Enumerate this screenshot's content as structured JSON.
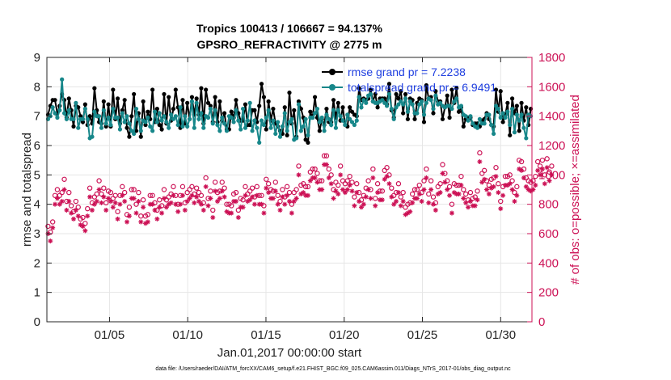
{
  "chart_data": {
    "type": "line",
    "title": "Tropics 100413 / 106667 = 94.137%",
    "subtitle": "GPSRO_REFRACTIVITY @ 2775 m",
    "xlabel": "Jan.01,2017 00:00:00 start",
    "ylabel_left": "rmse and totalspread",
    "ylabel_right": "# of obs: o=possible; ×=assimilated",
    "footer": "data file: /Users/raeder/DAI/ATM_forcXX/CAM6_setup/f.e21.FHIST_BGC.f09_025.CAM6assim.011/Diags_NTrS_2017-01/obs_diag_output.nc",
    "xlim": [
      1,
      32
    ],
    "ylim_left": [
      0,
      9
    ],
    "ylim_right": [
      0,
      1800
    ],
    "x_ticks": [
      5,
      10,
      15,
      20,
      25,
      30
    ],
    "x_tick_labels": [
      "01/05",
      "01/10",
      "01/15",
      "01/20",
      "01/25",
      "01/30"
    ],
    "y_ticks_left": [
      "0",
      "1",
      "2",
      "3",
      "4",
      "5",
      "6",
      "7",
      "8",
      "9"
    ],
    "y_ticks_right": [
      "0",
      "200",
      "400",
      "600",
      "800",
      "1000",
      "1200",
      "1400",
      "1600",
      "1800"
    ],
    "colors": {
      "rmse": "#000000",
      "spread": "#17878a",
      "obs": "#cc1155",
      "legend_text": "#1f3fe0",
      "right_axis": "#cc1155"
    },
    "series": [
      {
        "name": "rmse grand pr = 7.2238",
        "axis": "left",
        "values": [
          7.05,
          7.35,
          7.55,
          7.55,
          7.1,
          7.35,
          7.75,
          7.55,
          6.95,
          7.6,
          7.2,
          6.65,
          7.35,
          7.3,
          7.0,
          6.8,
          7.4,
          6.7,
          7.0,
          6.75,
          7.95,
          7.2,
          6.8,
          6.75,
          7.5,
          6.65,
          7.4,
          6.65,
          7.9,
          6.9,
          7.6,
          6.75,
          7.2,
          7.55,
          6.6,
          6.3,
          7.0,
          7.75,
          6.5,
          7.1,
          6.3,
          7.5,
          6.7,
          7.15,
          6.9,
          7.9,
          6.8,
          7.25,
          6.7,
          6.55,
          7.75,
          6.75,
          7.65,
          6.85,
          7.25,
          7.9,
          7.3,
          6.6,
          7.55,
          6.75,
          7.45,
          6.9,
          7.65,
          7.05,
          7.6,
          7.05,
          7.95,
          6.75,
          7.9,
          7.45,
          7.35,
          6.8,
          7.65,
          6.8,
          7.5,
          6.85,
          7.1,
          6.55,
          6.55,
          7.15,
          6.95,
          7.55,
          7.1,
          6.85,
          6.85,
          7.4,
          6.7,
          6.7,
          7.2,
          7.2,
          6.8,
          7.35,
          8.1,
          7.65,
          6.55,
          7.5,
          6.85,
          7.25,
          6.75,
          6.65,
          6.5,
          6.4,
          7.3,
          6.35,
          7.8,
          6.75,
          7.2,
          6.3,
          7.5,
          7.25,
          6.95,
          6.2,
          6.1,
          7.15,
          6.95,
          7.65,
          6.95,
          6.5,
          6.9,
          6.7,
          7.25,
          6.8,
          6.8,
          7.55,
          6.95,
          7.45,
          6.85,
          7.3,
          6.7,
          6.65,
          7.3,
          7.15,
          7.05,
          7.0,
          7.95,
          7.55,
          7.6,
          7.55,
          7.6,
          7.9,
          7.5,
          7.75,
          7.3,
          7.6,
          7.6,
          7.6,
          7.4,
          8.1,
          7.2,
          6.95,
          7.75,
          7.6,
          7.85,
          7.1,
          7.75,
          6.9,
          7.6,
          7.55,
          6.9,
          7.45,
          7.6,
          7.55,
          6.8,
          8.05,
          7.6,
          7.65,
          7.1,
          7.85,
          7.5,
          7.5,
          6.9,
          7.3,
          7.7,
          6.95,
          7.9,
          7.45,
          7.95,
          7.15,
          7.3,
          6.65,
          6.9,
          6.95,
          6.95,
          6.7,
          6.75,
          6.75,
          6.65,
          6.85,
          6.9,
          7.1,
          6.9,
          6.7,
          6.65,
          7.9,
          7.15,
          7.85,
          6.8,
          7.05,
          7.45,
          6.35,
          7.6,
          7.1,
          7.35,
          6.5,
          7.45,
          6.85,
          7.3,
          6.7,
          7.25
        ]
      },
      {
        "name": "totalspread grand pr = 6.9491",
        "axis": "left",
        "values": [
          6.9,
          7.0,
          7.3,
          7.1,
          6.95,
          7.2,
          8.25,
          7.1,
          6.9,
          7.2,
          6.9,
          6.9,
          7.45,
          6.6,
          6.9,
          6.9,
          7.25,
          6.9,
          6.25,
          6.3,
          7.15,
          7.0,
          7.0,
          6.6,
          7.2,
          6.75,
          6.95,
          6.7,
          7.25,
          6.95,
          6.95,
          6.55,
          7.1,
          6.8,
          7.0,
          6.75,
          6.5,
          6.4,
          7.25,
          6.9,
          6.5,
          6.85,
          6.8,
          6.95,
          6.65,
          6.5,
          7.15,
          6.8,
          7.1,
          6.85,
          7.0,
          6.8,
          6.6,
          7.05,
          6.9,
          7.0,
          6.7,
          7.3,
          6.65,
          7.0,
          6.65,
          6.9,
          7.5,
          6.6,
          7.45,
          6.9,
          7.1,
          6.6,
          7.0,
          6.95,
          7.25,
          6.75,
          7.2,
          6.7,
          6.5,
          6.95,
          6.75,
          6.5,
          7.0,
          6.95,
          6.8,
          7.2,
          6.85,
          6.55,
          7.25,
          6.6,
          6.85,
          7.45,
          6.5,
          6.85,
          6.6,
          6.1,
          6.85,
          6.7,
          6.95,
          7.2,
          6.6,
          6.85,
          6.4,
          6.8,
          6.3,
          6.65,
          7.1,
          6.5,
          6.8,
          6.9,
          6.2,
          6.25,
          7.4,
          6.5,
          6.65,
          6.9,
          6.35,
          6.95,
          6.95,
          7.1,
          7.25,
          6.8,
          6.95,
          6.5,
          7.05,
          6.9,
          6.7,
          7.2,
          6.6,
          7.2,
          7.0,
          6.85,
          6.7,
          7.05,
          6.9,
          6.8,
          6.7,
          6.85,
          7.65,
          7.3,
          7.55,
          7.45,
          7.7,
          7.75,
          7.5,
          7.45,
          7.45,
          7.5,
          7.55,
          7.45,
          7.35,
          7.75,
          7.25,
          6.9,
          7.3,
          7.4,
          7.5,
          7.4,
          7.6,
          7.15,
          7.5,
          7.4,
          7.1,
          7.1,
          7.4,
          7.5,
          7.05,
          7.45,
          7.6,
          7.55,
          7.25,
          7.7,
          7.4,
          7.45,
          7.35,
          7.3,
          7.35,
          7.35,
          7.25,
          7.5,
          7.6,
          7.3,
          7.35,
          7.05,
          7.0,
          6.85,
          7.0,
          6.75,
          6.65,
          6.6,
          6.9,
          6.75,
          6.75,
          7.05,
          7.05,
          6.7,
          6.4,
          7.35,
          7.25,
          6.95,
          7.1,
          6.95,
          7.15,
          6.7,
          7.25,
          6.45,
          7.05,
          6.85,
          7.05,
          6.6,
          6.25,
          7.05,
          7.0
        ]
      },
      {
        "name": "possible",
        "axis": "right",
        "values": [
          650,
          610,
          680,
          860,
          900,
          860,
          880,
          970,
          820,
          880,
          790,
          750,
          820,
          780,
          700,
          710,
          670,
          770,
          910,
          810,
          850,
          870,
          960,
          870,
          910,
          810,
          890,
          880,
          840,
          860,
          750,
          860,
          920,
          880,
          730,
          780,
          900,
          900,
          800,
          880,
          720,
          830,
          720,
          730,
          860,
          860,
          810,
          760,
          830,
          790,
          900,
          830,
          850,
          870,
          920,
          860,
          800,
          860,
          920,
          810,
          880,
          900,
          920,
          870,
          910,
          880,
          860,
          810,
          980,
          840,
          890,
          760,
          950,
          880,
          890,
          950,
          910,
          800,
          800,
          790,
          870,
          880,
          760,
          840,
          830,
          920,
          870,
          890,
          910,
          850,
          920,
          860,
          860,
          790,
          970,
          940,
          900,
          890,
          950,
          860,
          820,
          900,
          850,
          920,
          880,
          800,
          880,
          900,
          1060,
          930,
          940,
          920,
          920,
          1020,
          1040,
          1040,
          1010,
          960,
          960,
          1130,
          1130,
          1040,
          1000,
          900,
          950,
          930,
          1060,
          960,
          940,
          960,
          990,
          950,
          850,
          940,
          880,
          830,
          860,
          910,
          960,
          900,
          1040,
          840,
          940,
          890,
          890,
          1030,
          1050,
          1000,
          910,
          860,
          880,
          940,
          850,
          880,
          780,
          800,
          810,
          870,
          900,
          900,
          930,
          880,
          960,
          1040,
          870,
          960,
          850,
          810,
          920,
          940,
          1070,
          1010,
          960,
          920,
          800,
          940,
          930,
          930,
          990,
          900,
          870,
          830,
          880,
          840,
          850,
          890,
          1150,
          1010,
          1030,
          960,
          930,
          970,
          980,
          1050,
          940,
          820,
          920,
          990,
          990,
          1000,
          960,
          880,
          920,
          1100,
          1090,
          1040,
          980,
          960,
          950,
          960,
          990,
          1090,
          1060,
          1100,
          1000,
          1110,
          1020,
          1060
        ]
      },
      {
        "name": "assimilated",
        "axis": "right",
        "values": [
          600,
          550,
          640,
          800,
          840,
          800,
          820,
          900,
          760,
          820,
          740,
          700,
          760,
          720,
          660,
          650,
          620,
          720,
          850,
          760,
          800,
          820,
          900,
          810,
          850,
          760,
          840,
          820,
          780,
          810,
          700,
          800,
          860,
          820,
          680,
          720,
          840,
          840,
          740,
          820,
          680,
          780,
          670,
          680,
          800,
          800,
          760,
          700,
          780,
          740,
          840,
          780,
          800,
          810,
          860,
          800,
          750,
          800,
          860,
          760,
          820,
          840,
          860,
          810,
          850,
          820,
          800,
          760,
          920,
          790,
          840,
          710,
          890,
          820,
          840,
          890,
          850,
          750,
          740,
          740,
          820,
          820,
          710,
          780,
          780,
          860,
          820,
          830,
          850,
          800,
          860,
          800,
          800,
          740,
          910,
          880,
          840,
          840,
          890,
          800,
          760,
          850,
          800,
          860,
          820,
          740,
          820,
          840,
          1000,
          870,
          880,
          860,
          860,
          960,
          980,
          980,
          950,
          900,
          900,
          1070,
          1070,
          980,
          940,
          840,
          890,
          870,
          1000,
          900,
          880,
          900,
          930,
          890,
          790,
          880,
          820,
          780,
          800,
          850,
          900,
          840,
          980,
          790,
          880,
          830,
          830,
          970,
          990,
          940,
          850,
          800,
          820,
          880,
          790,
          820,
          730,
          740,
          750,
          810,
          840,
          840,
          870,
          820,
          900,
          980,
          810,
          900,
          800,
          760,
          870,
          880,
          1010,
          950,
          900,
          860,
          740,
          880,
          870,
          870,
          930,
          840,
          810,
          780,
          820,
          790,
          790,
          830,
          1090,
          950,
          970,
          900,
          870,
          910,
          920,
          990,
          880,
          770,
          860,
          930,
          930,
          940,
          900,
          820,
          860,
          1040,
          1030,
          980,
          920,
          900,
          890,
          900,
          930,
          1030,
          1000,
          1040,
          940,
          1050,
          960,
          1000
        ]
      }
    ]
  }
}
